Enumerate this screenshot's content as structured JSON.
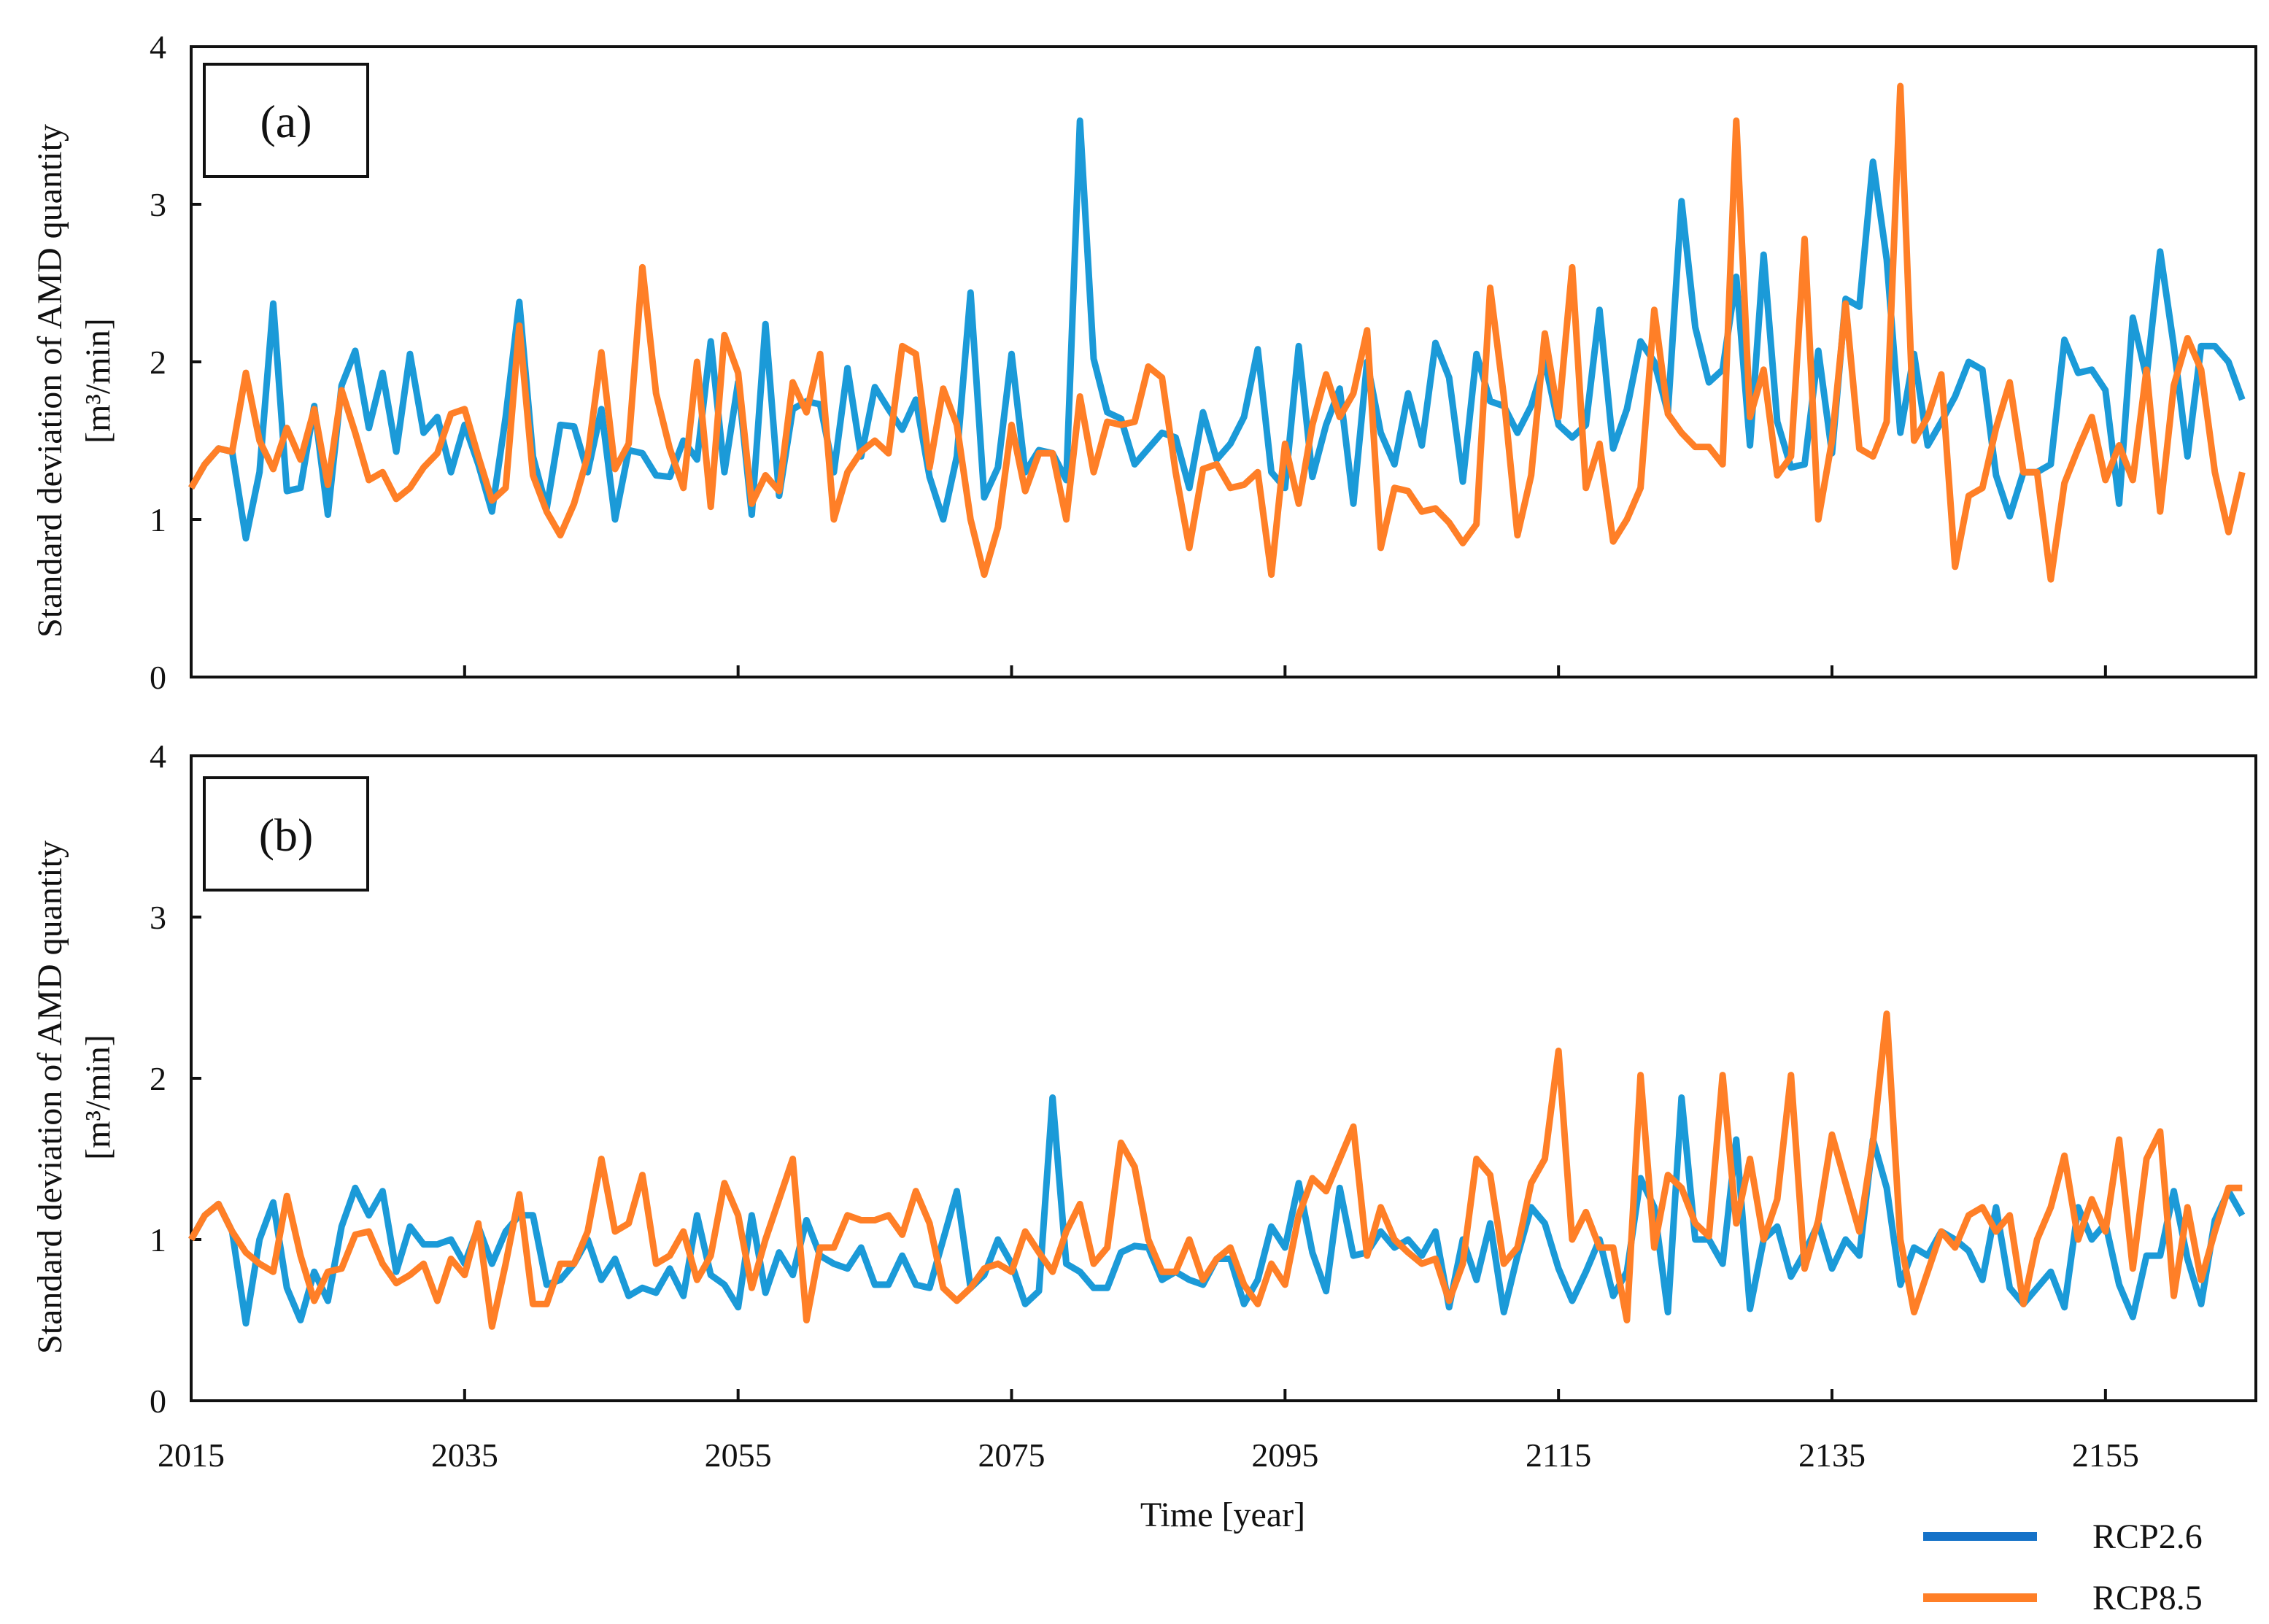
{
  "chart_data": [
    {
      "type": "line",
      "panel_label": "(a)",
      "ylabel_line1": "Standard deviation of AMD quantity",
      "ylabel_line2": "[m³/min]",
      "ylim": [
        0,
        4
      ],
      "yticks": [
        "0",
        "1",
        "2",
        "3",
        "4"
      ],
      "x_start": 2015,
      "x_step": 1,
      "series": [
        {
          "name": "RCP2.6",
          "color": "#1b9ad8",
          "values": [
            1.2,
            1.35,
            1.45,
            1.43,
            0.88,
            1.3,
            2.37,
            1.18,
            1.2,
            1.72,
            1.03,
            1.85,
            2.07,
            1.58,
            1.93,
            1.43,
            2.05,
            1.55,
            1.65,
            1.3,
            1.6,
            1.35,
            1.05,
            1.65,
            2.38,
            1.4,
            1.07,
            1.6,
            1.59,
            1.3,
            1.7,
            1.0,
            1.44,
            1.42,
            1.28,
            1.27,
            1.5,
            1.38,
            2.13,
            1.3,
            1.87,
            1.03,
            2.24,
            1.15,
            1.7,
            1.75,
            1.73,
            1.3,
            1.96,
            1.4,
            1.84,
            1.7,
            1.57,
            1.76,
            1.27,
            1.0,
            1.4,
            2.44,
            1.14,
            1.33,
            2.05,
            1.3,
            1.44,
            1.42,
            1.25,
            3.53,
            2.02,
            1.68,
            1.64,
            1.35,
            1.45,
            1.55,
            1.52,
            1.2,
            1.68,
            1.38,
            1.48,
            1.65,
            2.08,
            1.3,
            1.2,
            2.1,
            1.27,
            1.6,
            1.83,
            1.1,
            2.0,
            1.55,
            1.35,
            1.8,
            1.47,
            2.12,
            1.9,
            1.24,
            2.05,
            1.75,
            1.72,
            1.55,
            1.72,
            2.0,
            1.6,
            1.52,
            1.6,
            2.33,
            1.45,
            1.7,
            2.13,
            2.0,
            1.68,
            3.02,
            2.22,
            1.87,
            1.95,
            2.54,
            1.47,
            2.68,
            1.62,
            1.33,
            1.35,
            2.07,
            1.42,
            2.4,
            2.35,
            3.27,
            2.65,
            1.55,
            2.05,
            1.47,
            1.62,
            1.78,
            2.0,
            1.95,
            1.28,
            1.02,
            1.3,
            1.3,
            1.35,
            2.14,
            1.93,
            1.95,
            1.82,
            1.1,
            2.28,
            1.9,
            2.7,
            2.1,
            1.4,
            2.1,
            2.1,
            2.0,
            1.76
          ]
        },
        {
          "name": "RCP8.5",
          "color": "#ff7f27",
          "values": [
            1.2,
            1.35,
            1.45,
            1.43,
            1.93,
            1.5,
            1.32,
            1.58,
            1.38,
            1.7,
            1.22,
            1.82,
            1.55,
            1.25,
            1.3,
            1.13,
            1.2,
            1.33,
            1.42,
            1.67,
            1.7,
            1.4,
            1.12,
            1.2,
            2.23,
            1.28,
            1.05,
            0.9,
            1.1,
            1.4,
            2.06,
            1.32,
            1.48,
            2.6,
            1.8,
            1.45,
            1.2,
            2.0,
            1.08,
            2.17,
            1.93,
            1.1,
            1.28,
            1.18,
            1.87,
            1.68,
            2.05,
            1.0,
            1.3,
            1.43,
            1.5,
            1.42,
            2.1,
            2.05,
            1.33,
            1.83,
            1.6,
            1.0,
            0.65,
            0.95,
            1.6,
            1.18,
            1.42,
            1.42,
            1.0,
            1.78,
            1.3,
            1.62,
            1.6,
            1.62,
            1.97,
            1.9,
            1.3,
            0.82,
            1.32,
            1.35,
            1.2,
            1.22,
            1.3,
            0.65,
            1.48,
            1.1,
            1.6,
            1.92,
            1.65,
            1.8,
            2.2,
            0.82,
            1.2,
            1.18,
            1.05,
            1.07,
            0.98,
            0.85,
            0.97,
            2.47,
            1.78,
            0.9,
            1.28,
            2.18,
            1.65,
            2.6,
            1.2,
            1.48,
            0.86,
            1.0,
            1.2,
            2.33,
            1.67,
            1.55,
            1.46,
            1.46,
            1.35,
            3.53,
            1.65,
            1.95,
            1.28,
            1.4,
            2.78,
            1.0,
            1.5,
            2.37,
            1.45,
            1.4,
            1.62,
            3.75,
            1.5,
            1.65,
            1.92,
            0.7,
            1.15,
            1.2,
            1.58,
            1.87,
            1.3,
            1.3,
            0.62,
            1.23,
            1.45,
            1.65,
            1.25,
            1.47,
            1.25,
            1.95,
            1.05,
            1.85,
            2.15,
            1.95,
            1.3,
            0.92,
            1.3
          ]
        }
      ]
    },
    {
      "type": "line",
      "panel_label": "(b)",
      "ylabel_line1": "Standard deviation of  AMD quantity",
      "ylabel_line2": "[m³/min]",
      "ylim": [
        0,
        4
      ],
      "yticks": [
        "0",
        "1",
        "2",
        "3",
        "4"
      ],
      "x_start": 2015,
      "x_step": 1,
      "xlim": [
        2015,
        2166
      ],
      "xticks": [
        "2015",
        "2035",
        "2055",
        "2075",
        "2095",
        "2115",
        "2135",
        "2155"
      ],
      "xlabel": "Time [year]",
      "series": [
        {
          "name": "RCP2.6",
          "color": "#1b9ad8",
          "values": [
            1.0,
            1.15,
            1.22,
            1.05,
            0.48,
            1.0,
            1.23,
            0.7,
            0.5,
            0.8,
            0.62,
            1.08,
            1.32,
            1.15,
            1.3,
            0.8,
            1.08,
            0.97,
            0.97,
            1.0,
            0.85,
            1.08,
            0.85,
            1.05,
            1.15,
            1.15,
            0.72,
            0.75,
            0.85,
            1.0,
            0.75,
            0.88,
            0.65,
            0.7,
            0.67,
            0.82,
            0.65,
            1.15,
            0.78,
            0.72,
            0.58,
            1.15,
            0.67,
            0.92,
            0.78,
            1.12,
            0.9,
            0.85,
            0.82,
            0.95,
            0.72,
            0.72,
            0.9,
            0.72,
            0.7,
            1.0,
            1.3,
            0.7,
            0.78,
            1.0,
            0.85,
            0.6,
            0.68,
            1.88,
            0.85,
            0.8,
            0.7,
            0.7,
            0.92,
            0.96,
            0.95,
            0.75,
            0.8,
            0.75,
            0.72,
            0.88,
            0.88,
            0.6,
            0.75,
            1.08,
            0.95,
            1.35,
            0.92,
            0.68,
            1.32,
            0.9,
            0.92,
            1.05,
            0.95,
            1.0,
            0.9,
            1.05,
            0.58,
            1.0,
            0.75,
            1.1,
            0.55,
            0.9,
            1.2,
            1.1,
            0.82,
            0.62,
            0.8,
            1.0,
            0.65,
            0.8,
            1.38,
            1.2,
            0.55,
            1.88,
            1.0,
            1.0,
            0.85,
            1.62,
            0.57,
            1.0,
            1.08,
            0.77,
            0.92,
            1.1,
            0.82,
            1.0,
            0.9,
            1.62,
            1.32,
            0.72,
            0.95,
            0.9,
            1.05,
            1.0,
            0.93,
            0.75,
            1.2,
            0.7,
            0.6,
            0.7,
            0.8,
            0.58,
            1.2,
            1.0,
            1.1,
            0.72,
            0.52,
            0.9,
            0.9,
            1.3,
            0.88,
            0.6,
            1.12,
            1.3,
            1.15
          ]
        },
        {
          "name": "RCP8.5",
          "color": "#ff7f27",
          "values": [
            1.0,
            1.15,
            1.22,
            1.05,
            0.92,
            0.85,
            0.8,
            1.27,
            0.9,
            0.62,
            0.8,
            0.82,
            1.03,
            1.05,
            0.85,
            0.73,
            0.78,
            0.85,
            0.62,
            0.88,
            0.78,
            1.1,
            0.46,
            0.85,
            1.28,
            0.6,
            0.6,
            0.85,
            0.85,
            1.05,
            1.5,
            1.05,
            1.1,
            1.4,
            0.85,
            0.9,
            1.05,
            0.75,
            0.9,
            1.35,
            1.15,
            0.7,
            1.0,
            1.25,
            1.5,
            0.5,
            0.95,
            0.95,
            1.15,
            1.12,
            1.12,
            1.15,
            1.03,
            1.3,
            1.1,
            0.7,
            0.62,
            0.7,
            0.82,
            0.85,
            0.8,
            1.05,
            0.92,
            0.8,
            1.05,
            1.22,
            0.85,
            0.95,
            1.6,
            1.45,
            1.0,
            0.8,
            0.8,
            1.0,
            0.75,
            0.88,
            0.95,
            0.72,
            0.6,
            0.85,
            0.72,
            1.15,
            1.38,
            1.3,
            1.5,
            1.7,
            0.9,
            1.2,
            1.0,
            0.92,
            0.85,
            0.88,
            0.62,
            0.85,
            1.5,
            1.4,
            0.85,
            0.95,
            1.35,
            1.5,
            2.17,
            1.0,
            1.17,
            0.95,
            0.95,
            0.5,
            2.02,
            0.95,
            1.4,
            1.32,
            1.1,
            1.02,
            2.02,
            1.1,
            1.5,
            1.0,
            1.25,
            2.02,
            0.82,
            1.12,
            1.65,
            1.35,
            1.05,
            1.6,
            2.4,
            1.0,
            0.55,
            0.8,
            1.05,
            0.95,
            1.15,
            1.2,
            1.05,
            1.15,
            0.6,
            1.0,
            1.2,
            1.52,
            1.0,
            1.25,
            1.05,
            1.62,
            0.82,
            1.5,
            1.67,
            0.65,
            1.2,
            0.75,
            1.05,
            1.32,
            1.32
          ]
        }
      ]
    }
  ],
  "legend": {
    "placement": "bottom-right",
    "items": [
      {
        "label": "RCP2.6",
        "color": "#1572c8"
      },
      {
        "label": "RCP8.5",
        "color": "#ff7f27"
      }
    ]
  }
}
